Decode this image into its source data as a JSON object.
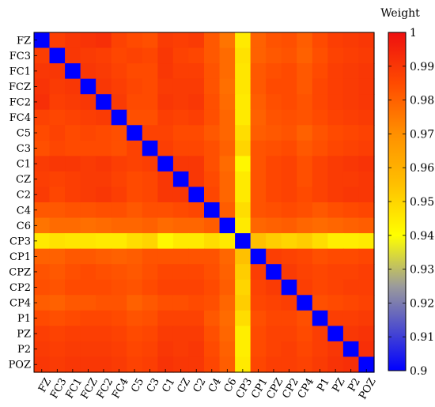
{
  "chart_data": {
    "type": "heatmap",
    "title": "",
    "xlabel": "",
    "ylabel": "",
    "labels": [
      "FZ",
      "FC3",
      "FC1",
      "FCZ",
      "FC2",
      "FC4",
      "C5",
      "C3",
      "C1",
      "CZ",
      "C2",
      "C4",
      "C6",
      "CP3",
      "CP1",
      "CPZ",
      "CP2",
      "CP4",
      "P1",
      "PZ",
      "P2",
      "POZ"
    ],
    "colorbar": {
      "title": "Weight",
      "min": 0.9,
      "max": 1.0,
      "ticks": [
        "0.9",
        "0.91",
        "0.92",
        "0.93",
        "0.94",
        "0.95",
        "0.96",
        "0.97",
        "0.98",
        "0.99",
        "1"
      ]
    },
    "colorscale": [
      [
        0.0,
        "#0000ff"
      ],
      [
        0.25,
        "#9b9b9b"
      ],
      [
        0.4,
        "#ffff00"
      ],
      [
        0.55,
        "#ffc000"
      ],
      [
        0.7,
        "#ff9000"
      ],
      [
        0.85,
        "#ff4a00"
      ],
      [
        1.0,
        "#ee1010"
      ]
    ],
    "diagonal_value": 0.9,
    "values": [
      [
        0.9,
        0.988,
        0.99,
        0.991,
        0.992,
        0.987,
        0.985,
        0.984,
        0.989,
        0.988,
        0.989,
        0.982,
        0.976,
        0.945,
        0.98,
        0.983,
        0.984,
        0.981,
        0.985,
        0.988,
        0.989,
        0.99
      ],
      [
        0.988,
        0.9,
        0.99,
        0.989,
        0.988,
        0.986,
        0.987,
        0.986,
        0.99,
        0.987,
        0.986,
        0.982,
        0.978,
        0.947,
        0.98,
        0.982,
        0.983,
        0.98,
        0.984,
        0.987,
        0.988,
        0.989
      ],
      [
        0.99,
        0.99,
        0.9,
        0.99,
        0.989,
        0.987,
        0.985,
        0.985,
        0.99,
        0.988,
        0.988,
        0.983,
        0.978,
        0.946,
        0.982,
        0.984,
        0.985,
        0.982,
        0.985,
        0.988,
        0.989,
        0.99
      ],
      [
        0.991,
        0.989,
        0.99,
        0.9,
        0.99,
        0.988,
        0.986,
        0.985,
        0.989,
        0.989,
        0.989,
        0.983,
        0.977,
        0.946,
        0.982,
        0.985,
        0.985,
        0.982,
        0.986,
        0.988,
        0.989,
        0.99
      ],
      [
        0.992,
        0.988,
        0.989,
        0.99,
        0.9,
        0.989,
        0.985,
        0.985,
        0.99,
        0.989,
        0.99,
        0.984,
        0.978,
        0.945,
        0.981,
        0.984,
        0.985,
        0.983,
        0.986,
        0.988,
        0.989,
        0.99
      ],
      [
        0.987,
        0.986,
        0.987,
        0.988,
        0.989,
        0.9,
        0.984,
        0.984,
        0.988,
        0.987,
        0.988,
        0.984,
        0.979,
        0.945,
        0.98,
        0.983,
        0.984,
        0.983,
        0.985,
        0.987,
        0.988,
        0.989
      ],
      [
        0.985,
        0.987,
        0.985,
        0.986,
        0.985,
        0.984,
        0.9,
        0.987,
        0.987,
        0.985,
        0.985,
        0.982,
        0.979,
        0.948,
        0.981,
        0.982,
        0.983,
        0.98,
        0.983,
        0.985,
        0.986,
        0.987
      ],
      [
        0.984,
        0.986,
        0.985,
        0.985,
        0.985,
        0.984,
        0.987,
        0.9,
        0.988,
        0.986,
        0.986,
        0.984,
        0.98,
        0.95,
        0.983,
        0.984,
        0.985,
        0.982,
        0.984,
        0.986,
        0.987,
        0.988
      ],
      [
        0.989,
        0.99,
        0.99,
        0.989,
        0.99,
        0.988,
        0.987,
        0.988,
        0.9,
        0.99,
        0.99,
        0.984,
        0.978,
        0.942,
        0.983,
        0.986,
        0.987,
        0.984,
        0.987,
        0.989,
        0.99,
        0.991
      ],
      [
        0.988,
        0.987,
        0.988,
        0.989,
        0.989,
        0.987,
        0.985,
        0.986,
        0.99,
        0.9,
        0.99,
        0.985,
        0.979,
        0.945,
        0.983,
        0.986,
        0.987,
        0.984,
        0.987,
        0.989,
        0.989,
        0.99
      ],
      [
        0.989,
        0.986,
        0.988,
        0.989,
        0.99,
        0.988,
        0.985,
        0.986,
        0.99,
        0.99,
        0.9,
        0.986,
        0.979,
        0.945,
        0.983,
        0.986,
        0.987,
        0.985,
        0.987,
        0.989,
        0.99,
        0.99
      ],
      [
        0.982,
        0.982,
        0.983,
        0.983,
        0.984,
        0.984,
        0.982,
        0.984,
        0.984,
        0.985,
        0.986,
        0.9,
        0.981,
        0.948,
        0.983,
        0.984,
        0.985,
        0.984,
        0.982,
        0.984,
        0.985,
        0.986
      ],
      [
        0.976,
        0.978,
        0.978,
        0.977,
        0.978,
        0.979,
        0.979,
        0.98,
        0.978,
        0.979,
        0.979,
        0.981,
        0.9,
        0.945,
        0.979,
        0.98,
        0.981,
        0.979,
        0.978,
        0.979,
        0.98,
        0.981
      ],
      [
        0.945,
        0.947,
        0.946,
        0.946,
        0.945,
        0.945,
        0.948,
        0.95,
        0.942,
        0.945,
        0.945,
        0.948,
        0.945,
        0.9,
        0.955,
        0.952,
        0.95,
        0.952,
        0.948,
        0.944,
        0.944,
        0.945
      ],
      [
        0.98,
        0.98,
        0.982,
        0.982,
        0.981,
        0.98,
        0.981,
        0.983,
        0.983,
        0.983,
        0.983,
        0.983,
        0.979,
        0.955,
        0.9,
        0.988,
        0.987,
        0.986,
        0.984,
        0.985,
        0.985,
        0.986
      ],
      [
        0.983,
        0.982,
        0.984,
        0.985,
        0.984,
        0.983,
        0.982,
        0.984,
        0.986,
        0.986,
        0.986,
        0.984,
        0.98,
        0.952,
        0.988,
        0.9,
        0.989,
        0.987,
        0.986,
        0.987,
        0.987,
        0.988
      ],
      [
        0.984,
        0.983,
        0.985,
        0.985,
        0.985,
        0.984,
        0.983,
        0.985,
        0.987,
        0.987,
        0.987,
        0.985,
        0.981,
        0.95,
        0.987,
        0.989,
        0.9,
        0.988,
        0.986,
        0.987,
        0.988,
        0.988
      ],
      [
        0.981,
        0.98,
        0.982,
        0.982,
        0.983,
        0.983,
        0.98,
        0.982,
        0.984,
        0.984,
        0.985,
        0.984,
        0.979,
        0.952,
        0.986,
        0.987,
        0.988,
        0.9,
        0.984,
        0.985,
        0.986,
        0.987
      ],
      [
        0.985,
        0.984,
        0.985,
        0.986,
        0.986,
        0.985,
        0.983,
        0.984,
        0.987,
        0.987,
        0.987,
        0.982,
        0.978,
        0.948,
        0.984,
        0.986,
        0.986,
        0.984,
        0.9,
        0.988,
        0.988,
        0.989
      ],
      [
        0.988,
        0.987,
        0.988,
        0.988,
        0.988,
        0.987,
        0.985,
        0.986,
        0.989,
        0.989,
        0.989,
        0.984,
        0.979,
        0.944,
        0.985,
        0.987,
        0.987,
        0.985,
        0.988,
        0.9,
        0.99,
        0.991
      ],
      [
        0.989,
        0.988,
        0.989,
        0.989,
        0.989,
        0.988,
        0.986,
        0.987,
        0.99,
        0.989,
        0.99,
        0.985,
        0.98,
        0.944,
        0.985,
        0.987,
        0.988,
        0.986,
        0.988,
        0.99,
        0.9,
        0.992
      ],
      [
        0.99,
        0.989,
        0.99,
        0.99,
        0.99,
        0.989,
        0.987,
        0.988,
        0.991,
        0.99,
        0.99,
        0.986,
        0.981,
        0.945,
        0.986,
        0.988,
        0.988,
        0.987,
        0.989,
        0.991,
        0.992,
        0.9
      ]
    ]
  }
}
